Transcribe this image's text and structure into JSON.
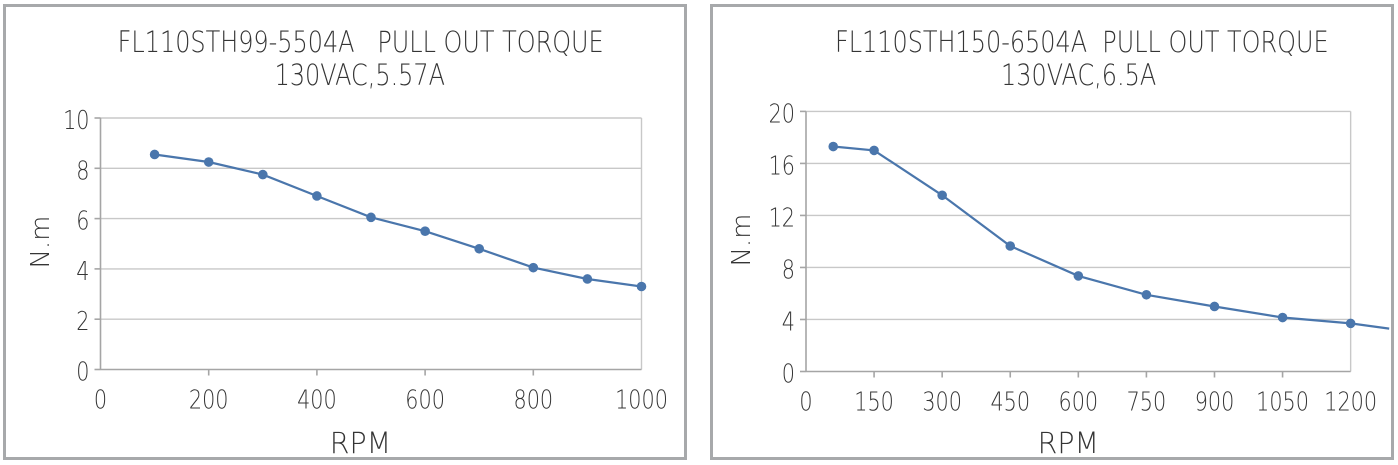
{
  "page": {
    "background_color": "#ffffff",
    "panel_border_color": "#a7a9ab",
    "text_color": "#353535"
  },
  "chart_data": [
    {
      "type": "line",
      "title": "FL110STH99-5504A   PULL OUT TORQUE",
      "subtitle": "130VAC,5.57A",
      "xlabel": "RPM",
      "ylabel": "N.m",
      "xlim": [
        0,
        1000
      ],
      "ylim": [
        0,
        10
      ],
      "xticks": [
        0,
        200,
        400,
        600,
        800,
        1000
      ],
      "yticks": [
        0,
        2,
        4,
        6,
        8,
        10
      ],
      "grid": "horizontal",
      "legend": "none",
      "colors": {
        "series": "#4a76ac",
        "grid": "#c8c8c8",
        "axis": "#a5a5a5"
      },
      "series": [
        {
          "name": "pull-out-torque",
          "x": [
            100,
            200,
            300,
            400,
            500,
            600,
            700,
            800,
            900,
            1000
          ],
          "y": [
            8.55,
            8.25,
            7.75,
            6.9,
            6.05,
            5.5,
            4.8,
            4.05,
            3.6,
            3.3
          ]
        }
      ]
    },
    {
      "type": "line",
      "title": "FL110STH150-6504A  PULL OUT TORQUE",
      "subtitle": "130VAC,6.5A",
      "xlabel": "RPM",
      "ylabel": "N.m",
      "xlim": [
        0,
        1290
      ],
      "ylim": [
        0,
        20
      ],
      "xticks": [
        0,
        150,
        300,
        450,
        600,
        750,
        900,
        1050,
        1200
      ],
      "yticks": [
        0,
        4,
        8,
        12,
        16,
        20
      ],
      "grid": "horizontal",
      "legend": "none",
      "colors": {
        "series": "#4a76ac",
        "grid": "#c8c8c8",
        "axis": "#a5a5a5"
      },
      "series": [
        {
          "name": "pull-out-torque",
          "x": [
            60,
            150,
            300,
            450,
            600,
            750,
            900,
            1050,
            1200
          ],
          "y": [
            17.3,
            17.0,
            13.55,
            9.65,
            7.35,
            5.9,
            5.0,
            4.15,
            3.7
          ],
          "overflow_point": {
            "x": 1285,
            "y": 3.3
          }
        }
      ]
    }
  ]
}
